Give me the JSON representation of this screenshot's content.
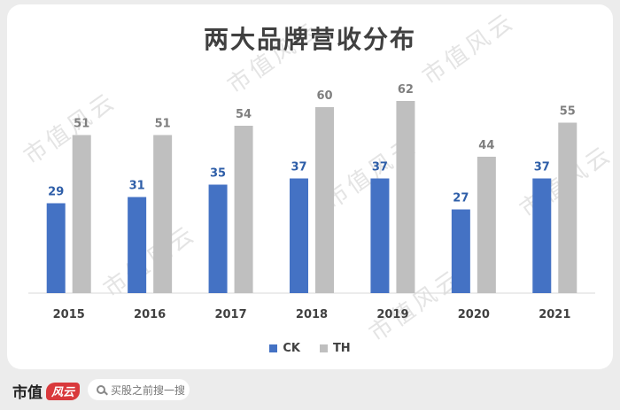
{
  "chart_data": {
    "type": "bar",
    "title": "两大品牌营收分布",
    "categories": [
      "2015",
      "2016",
      "2017",
      "2018",
      "2019",
      "2020",
      "2021"
    ],
    "series": [
      {
        "name": "CK",
        "values": [
          29,
          31,
          35,
          37,
          37,
          27,
          37
        ],
        "color": "#4472c4",
        "label_color": "#2e5ea8"
      },
      {
        "name": "TH",
        "values": [
          51,
          51,
          54,
          60,
          62,
          44,
          55
        ],
        "color": "#bfbfbf",
        "label_color": "#7f7f7f"
      }
    ],
    "ylim": [
      0,
      70
    ],
    "grid": false,
    "legend_position": "bottom"
  },
  "watermark": "市值风云",
  "footer": {
    "brand_text": "市值",
    "brand_badge": "风云",
    "search_placeholder": "买股之前搜一搜"
  }
}
